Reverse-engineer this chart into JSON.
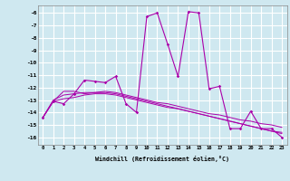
{
  "xlabel": "Windchill (Refroidissement éolien,°C)",
  "bg_color": "#cfe8f0",
  "grid_color": "#ffffff",
  "line_color": "#aa00aa",
  "xlim": [
    -0.5,
    23.5
  ],
  "ylim": [
    -16.6,
    -5.4
  ],
  "yticks": [
    -6,
    -7,
    -8,
    -9,
    -10,
    -11,
    -12,
    -13,
    -14,
    -15,
    -16
  ],
  "xticks": [
    0,
    1,
    2,
    3,
    4,
    5,
    6,
    7,
    8,
    9,
    10,
    11,
    12,
    13,
    14,
    15,
    16,
    17,
    18,
    19,
    20,
    21,
    22,
    23
  ],
  "jagged": [
    -14.4,
    -13.1,
    -13.3,
    -12.5,
    -11.4,
    -11.5,
    -11.6,
    -11.1,
    -13.3,
    -14.0,
    -6.3,
    -6.0,
    -8.5,
    -11.1,
    -5.9,
    -6.0,
    -12.1,
    -11.9,
    -15.3,
    -15.3,
    -13.9,
    -15.3,
    -15.3,
    -16.0
  ],
  "trend1": [
    -14.4,
    -13.1,
    -12.3,
    -12.3,
    -12.5,
    -12.4,
    -12.3,
    -12.4,
    -12.6,
    -12.8,
    -13.0,
    -13.2,
    -13.3,
    -13.5,
    -13.7,
    -13.9,
    -14.1,
    -14.2,
    -14.4,
    -14.6,
    -14.7,
    -14.9,
    -15.0,
    -15.2
  ],
  "trend2": [
    -14.4,
    -13.0,
    -12.6,
    -12.5,
    -12.4,
    -12.4,
    -12.4,
    -12.5,
    -12.7,
    -12.9,
    -13.1,
    -13.3,
    -13.5,
    -13.7,
    -13.9,
    -14.1,
    -14.3,
    -14.5,
    -14.7,
    -14.9,
    -15.1,
    -15.3,
    -15.5,
    -15.6
  ],
  "trend3": [
    -14.4,
    -13.1,
    -12.9,
    -12.8,
    -12.6,
    -12.5,
    -12.5,
    -12.6,
    -12.8,
    -13.0,
    -13.2,
    -13.4,
    -13.6,
    -13.7,
    -13.9,
    -14.1,
    -14.3,
    -14.5,
    -14.7,
    -14.9,
    -15.1,
    -15.3,
    -15.5,
    -15.7
  ]
}
